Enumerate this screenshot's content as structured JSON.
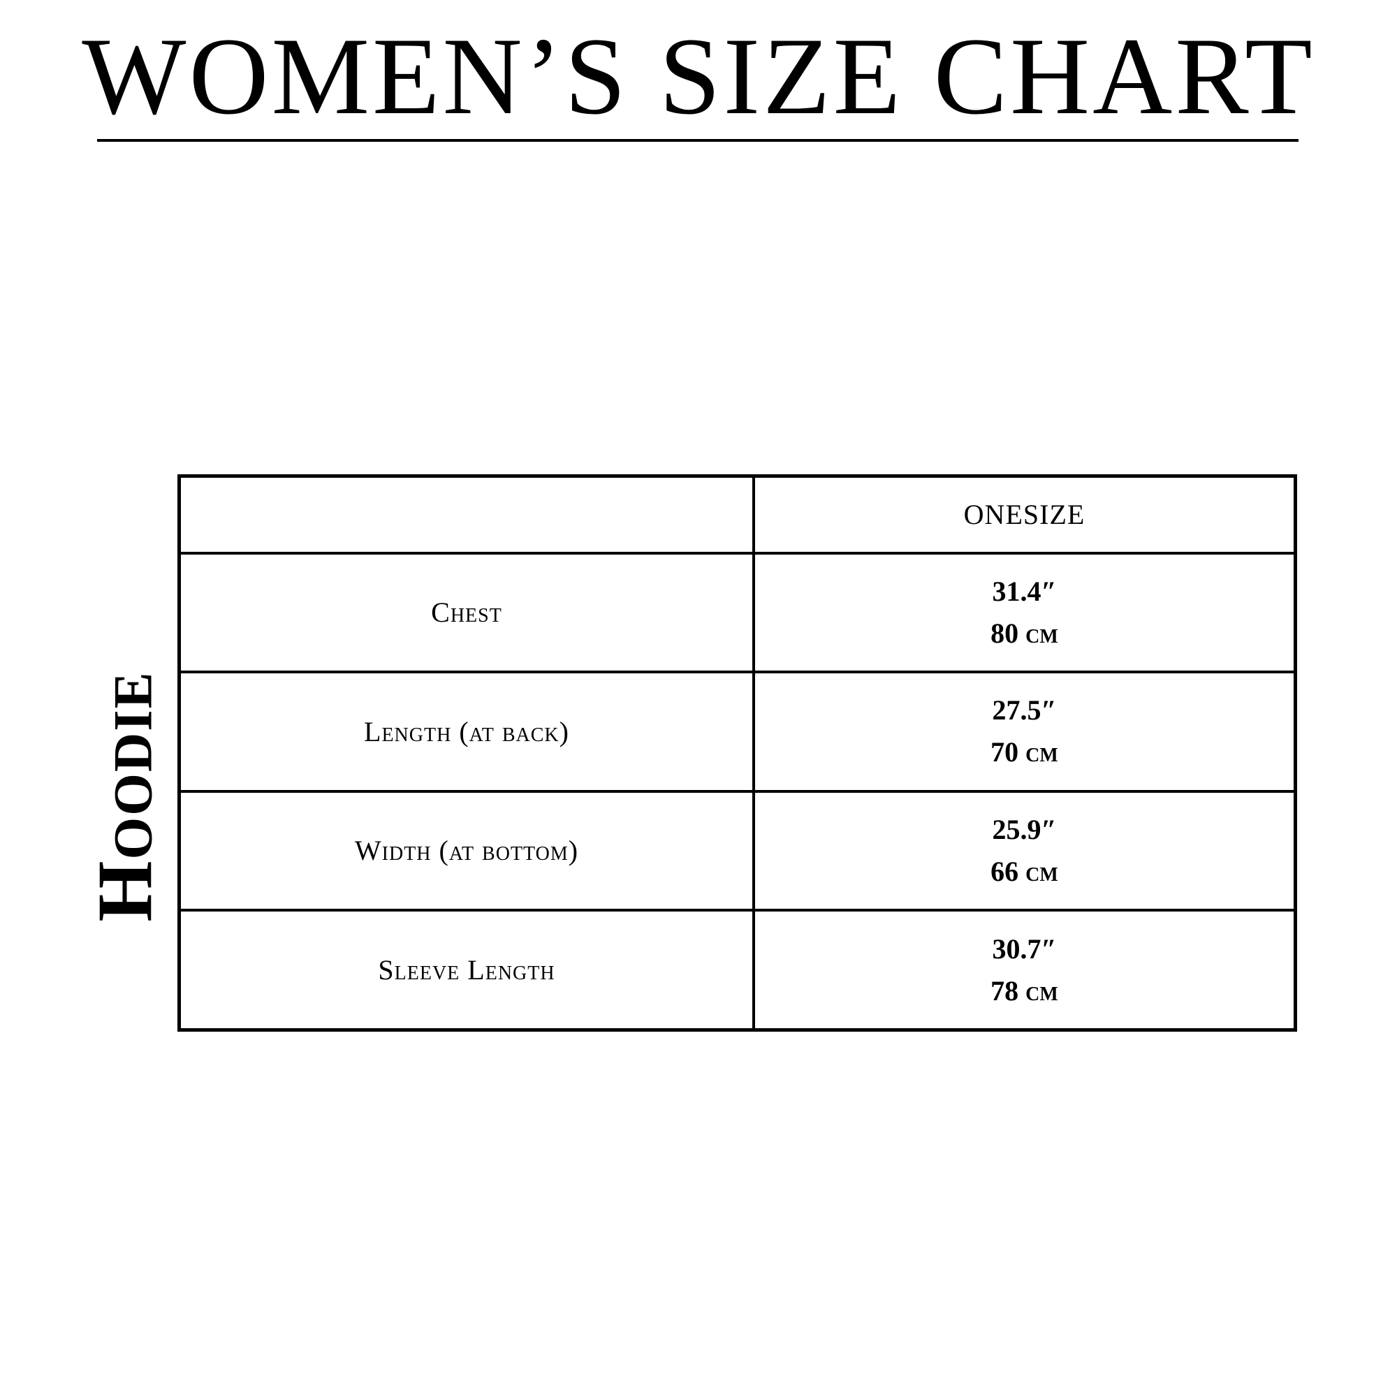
{
  "title": "WOMEN’S SIZE CHART",
  "side_label": "Hoodie",
  "table": {
    "header": {
      "empty": "",
      "size": "ONESIZE"
    },
    "rows": [
      {
        "label": "Chest",
        "inches": "31.4″",
        "cm": "80 cm"
      },
      {
        "label": "Length (at back)",
        "inches": "27.5″",
        "cm": "70 cm"
      },
      {
        "label": "Width (at bottom)",
        "inches": "25.9″",
        "cm": "66 cm"
      },
      {
        "label": "Sleeve Length",
        "inches": "30.7″",
        "cm": "78 cm"
      }
    ]
  }
}
